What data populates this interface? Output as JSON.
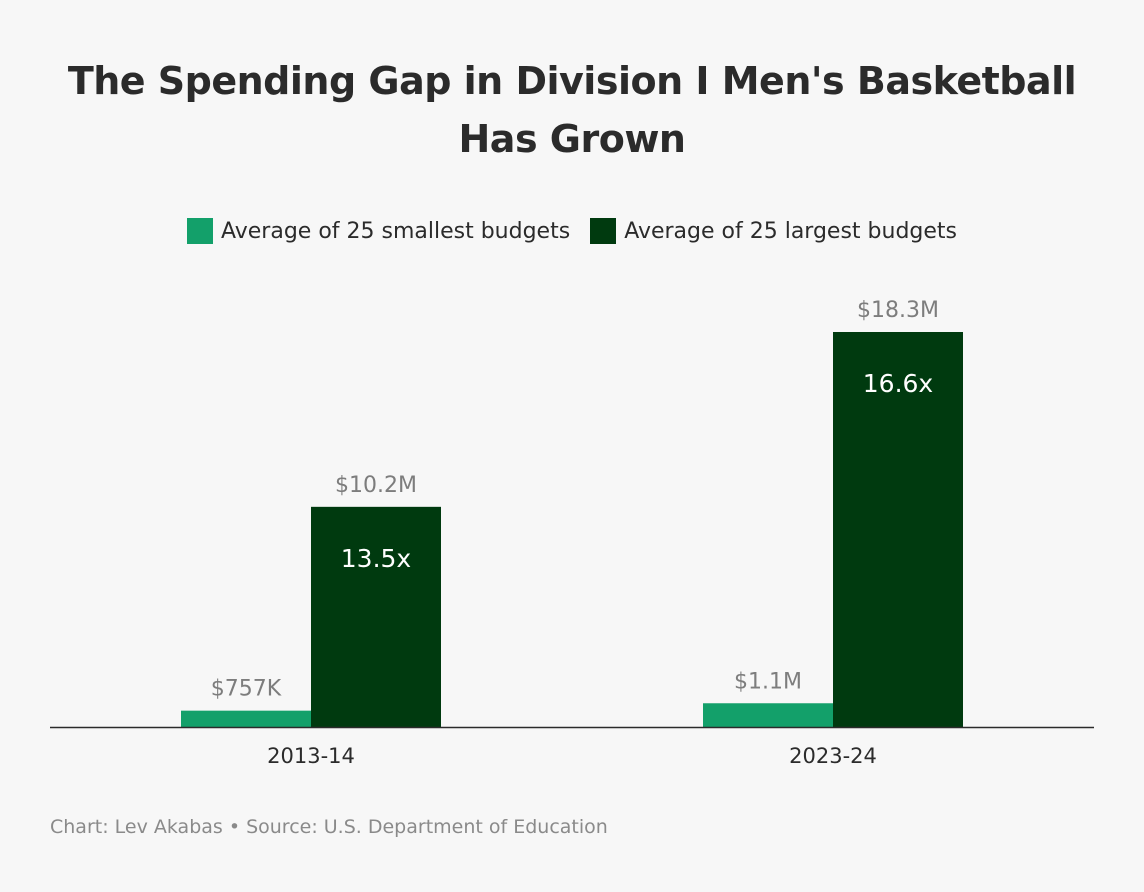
{
  "chart_data": {
    "type": "bar",
    "title": "The Spending Gap in Division I Men's Basketball Has Grown",
    "title_lines": [
      "The Spending Gap in Division I Men's Basketball",
      "Has Grown"
    ],
    "categories": [
      "2013-14",
      "2023-24"
    ],
    "series": [
      {
        "name": "Average of 25 smallest budgets",
        "values": [
          0.757,
          1.1
        ],
        "labels": [
          "$757K",
          "$1.1M"
        ],
        "color": "#13a06a"
      },
      {
        "name": "Average of 25 largest budgets",
        "values": [
          10.2,
          18.3
        ],
        "labels": [
          "$10.2M",
          "$18.3M"
        ],
        "color": "#003a0f"
      }
    ],
    "ratio_labels": [
      "13.5x",
      "16.6x"
    ],
    "unit": "millions of dollars",
    "ylim": [
      0,
      18.3
    ],
    "xlabel": "",
    "ylabel": "",
    "legend_position": "top-center",
    "grid": false
  },
  "footer": {
    "text": "Chart: Lev Akabas • Source: U.S. Department of Education"
  },
  "colors": {
    "background": "#f7f7f7",
    "axis": "#2b2b2b",
    "value_label": "#7d7d7d",
    "ratio_label": "#ffffff",
    "text": "#2b2b2b"
  }
}
